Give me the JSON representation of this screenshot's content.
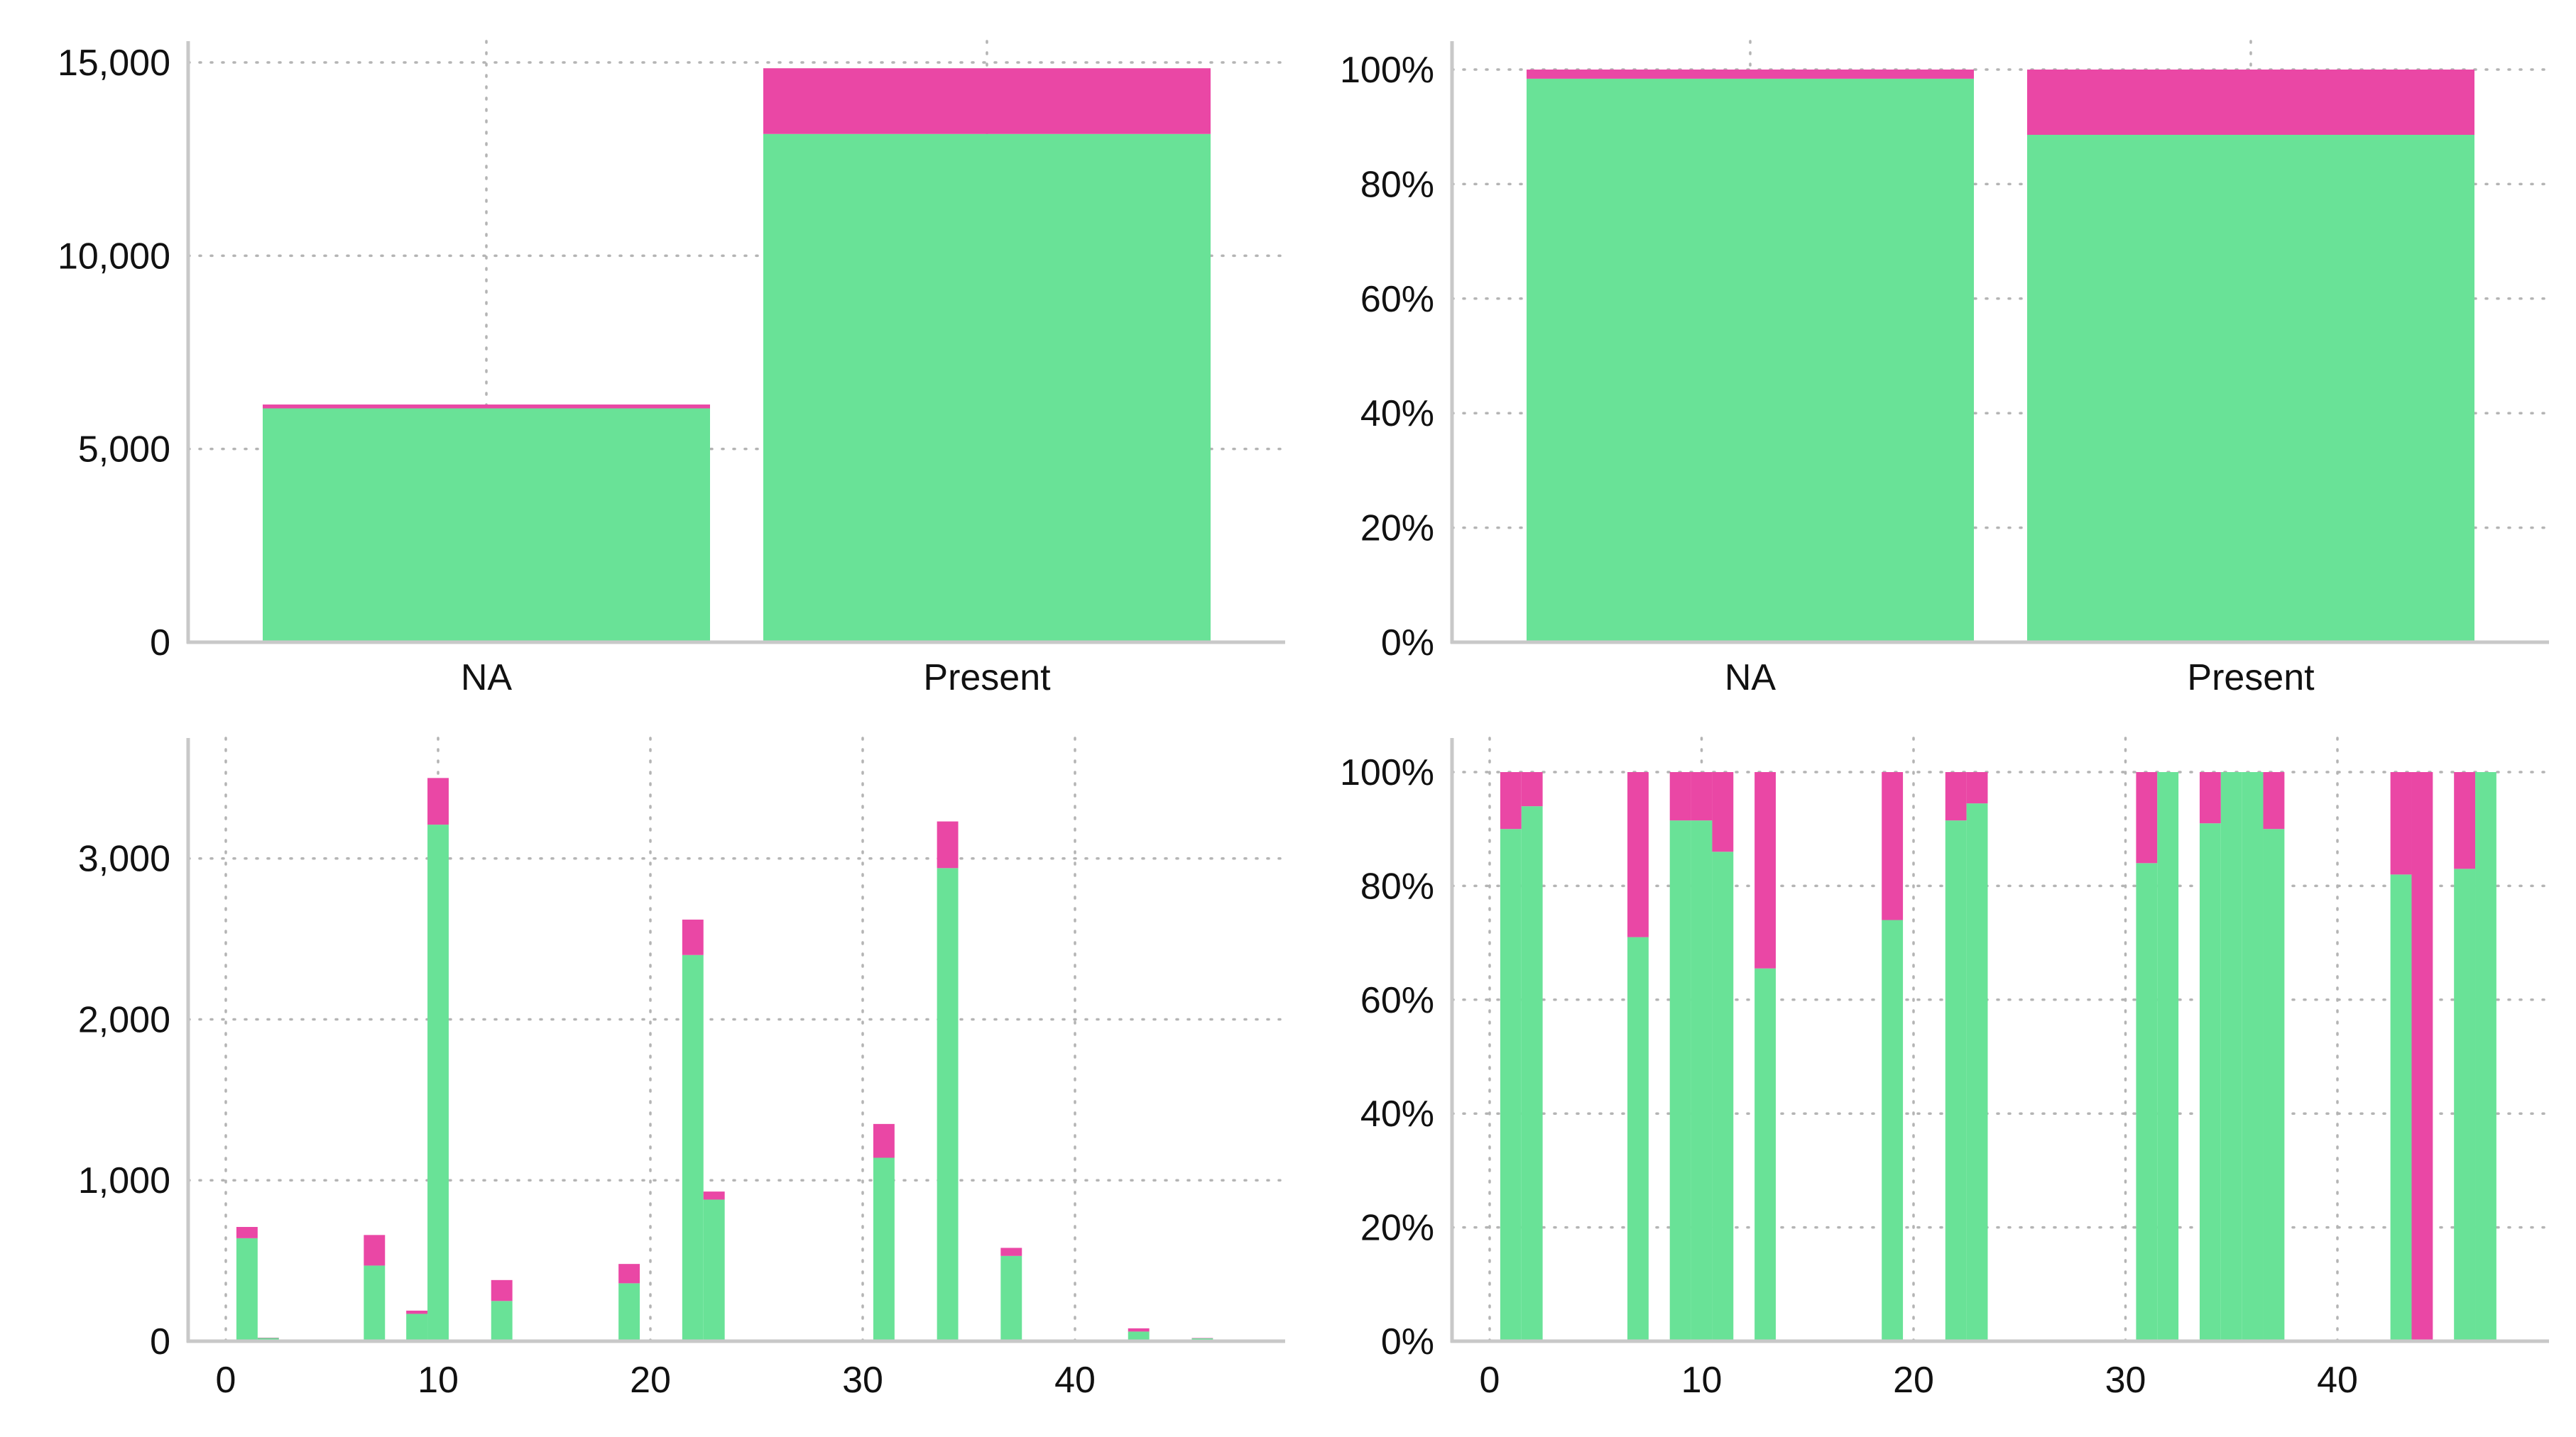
{
  "colors": {
    "green": "#69e297",
    "pink": "#ea47a5"
  },
  "chart_data": [
    {
      "type": "bar",
      "stacked": true,
      "categories": [
        "NA",
        "Present"
      ],
      "series": [
        {
          "values": [
            6050,
            13150
          ],
          "color": "#69e297"
        },
        {
          "values": [
            100,
            1700
          ],
          "color": "#ea47a5"
        }
      ],
      "ylim": [
        0,
        15000
      ],
      "y_ticks": [
        0,
        5000,
        10000,
        15000
      ],
      "y_tick_labels": [
        "0",
        "5,000",
        "10,000",
        "15,000"
      ],
      "grid": true
    },
    {
      "type": "bar",
      "stacked": true,
      "categories": [
        "NA",
        "Present"
      ],
      "series": [
        {
          "values": [
            98.4,
            88.6
          ],
          "color": "#69e297"
        },
        {
          "values": [
            1.6,
            11.4
          ],
          "color": "#ea47a5"
        }
      ],
      "ylim": [
        0,
        100
      ],
      "y_ticks": [
        0,
        20,
        40,
        60,
        80,
        100
      ],
      "y_tick_labels": [
        "0%",
        "20%",
        "40%",
        "60%",
        "80%",
        "100%"
      ],
      "grid": true
    },
    {
      "type": "bar",
      "stacked": true,
      "x": [
        1,
        2,
        7,
        9,
        10,
        13,
        19,
        22,
        23,
        31,
        34,
        37,
        43,
        46
      ],
      "series": [
        {
          "values": [
            640,
            20,
            470,
            170,
            3210,
            250,
            360,
            2400,
            880,
            1140,
            2940,
            530,
            60,
            18
          ],
          "color": "#69e297"
        },
        {
          "values": [
            70,
            2,
            190,
            20,
            290,
            130,
            120,
            220,
            50,
            210,
            290,
            50,
            20,
            2
          ],
          "color": "#ea47a5"
        }
      ],
      "xlim": [
        -1,
        49
      ],
      "ylim": [
        0,
        3550
      ],
      "x_ticks": [
        0,
        10,
        20,
        30,
        40
      ],
      "x_tick_labels": [
        "0",
        "10",
        "20",
        "30",
        "40"
      ],
      "y_ticks": [
        0,
        1000,
        2000,
        3000
      ],
      "y_tick_labels": [
        "0",
        "1,000",
        "2,000",
        "3,000"
      ],
      "grid": true
    },
    {
      "type": "bar",
      "stacked": true,
      "x": [
        1,
        2,
        7,
        9,
        10,
        11,
        13,
        19,
        22,
        23,
        31,
        32,
        34,
        35,
        36,
        37,
        43,
        44,
        46,
        47
      ],
      "series": [
        {
          "values": [
            90,
            94,
            71,
            91.5,
            91.5,
            86,
            65.5,
            74,
            91.5,
            94.5,
            84,
            100,
            91,
            100,
            100,
            90,
            82,
            0,
            83,
            100
          ],
          "color": "#69e297"
        },
        {
          "values": [
            10,
            6,
            29,
            8.5,
            8.5,
            14,
            34.5,
            26,
            8.5,
            5.5,
            16,
            0,
            9,
            0,
            0,
            10,
            18,
            100,
            17,
            0
          ],
          "color": "#ea47a5"
        }
      ],
      "xlim": [
        -1,
        49
      ],
      "ylim": [
        0,
        100
      ],
      "x_ticks": [
        0,
        10,
        20,
        30,
        40
      ],
      "x_tick_labels": [
        "0",
        "10",
        "20",
        "30",
        "40"
      ],
      "y_ticks": [
        0,
        20,
        40,
        60,
        80,
        100
      ],
      "y_tick_labels": [
        "0%",
        "20%",
        "40%",
        "60%",
        "80%",
        "100%"
      ],
      "grid": true
    }
  ]
}
